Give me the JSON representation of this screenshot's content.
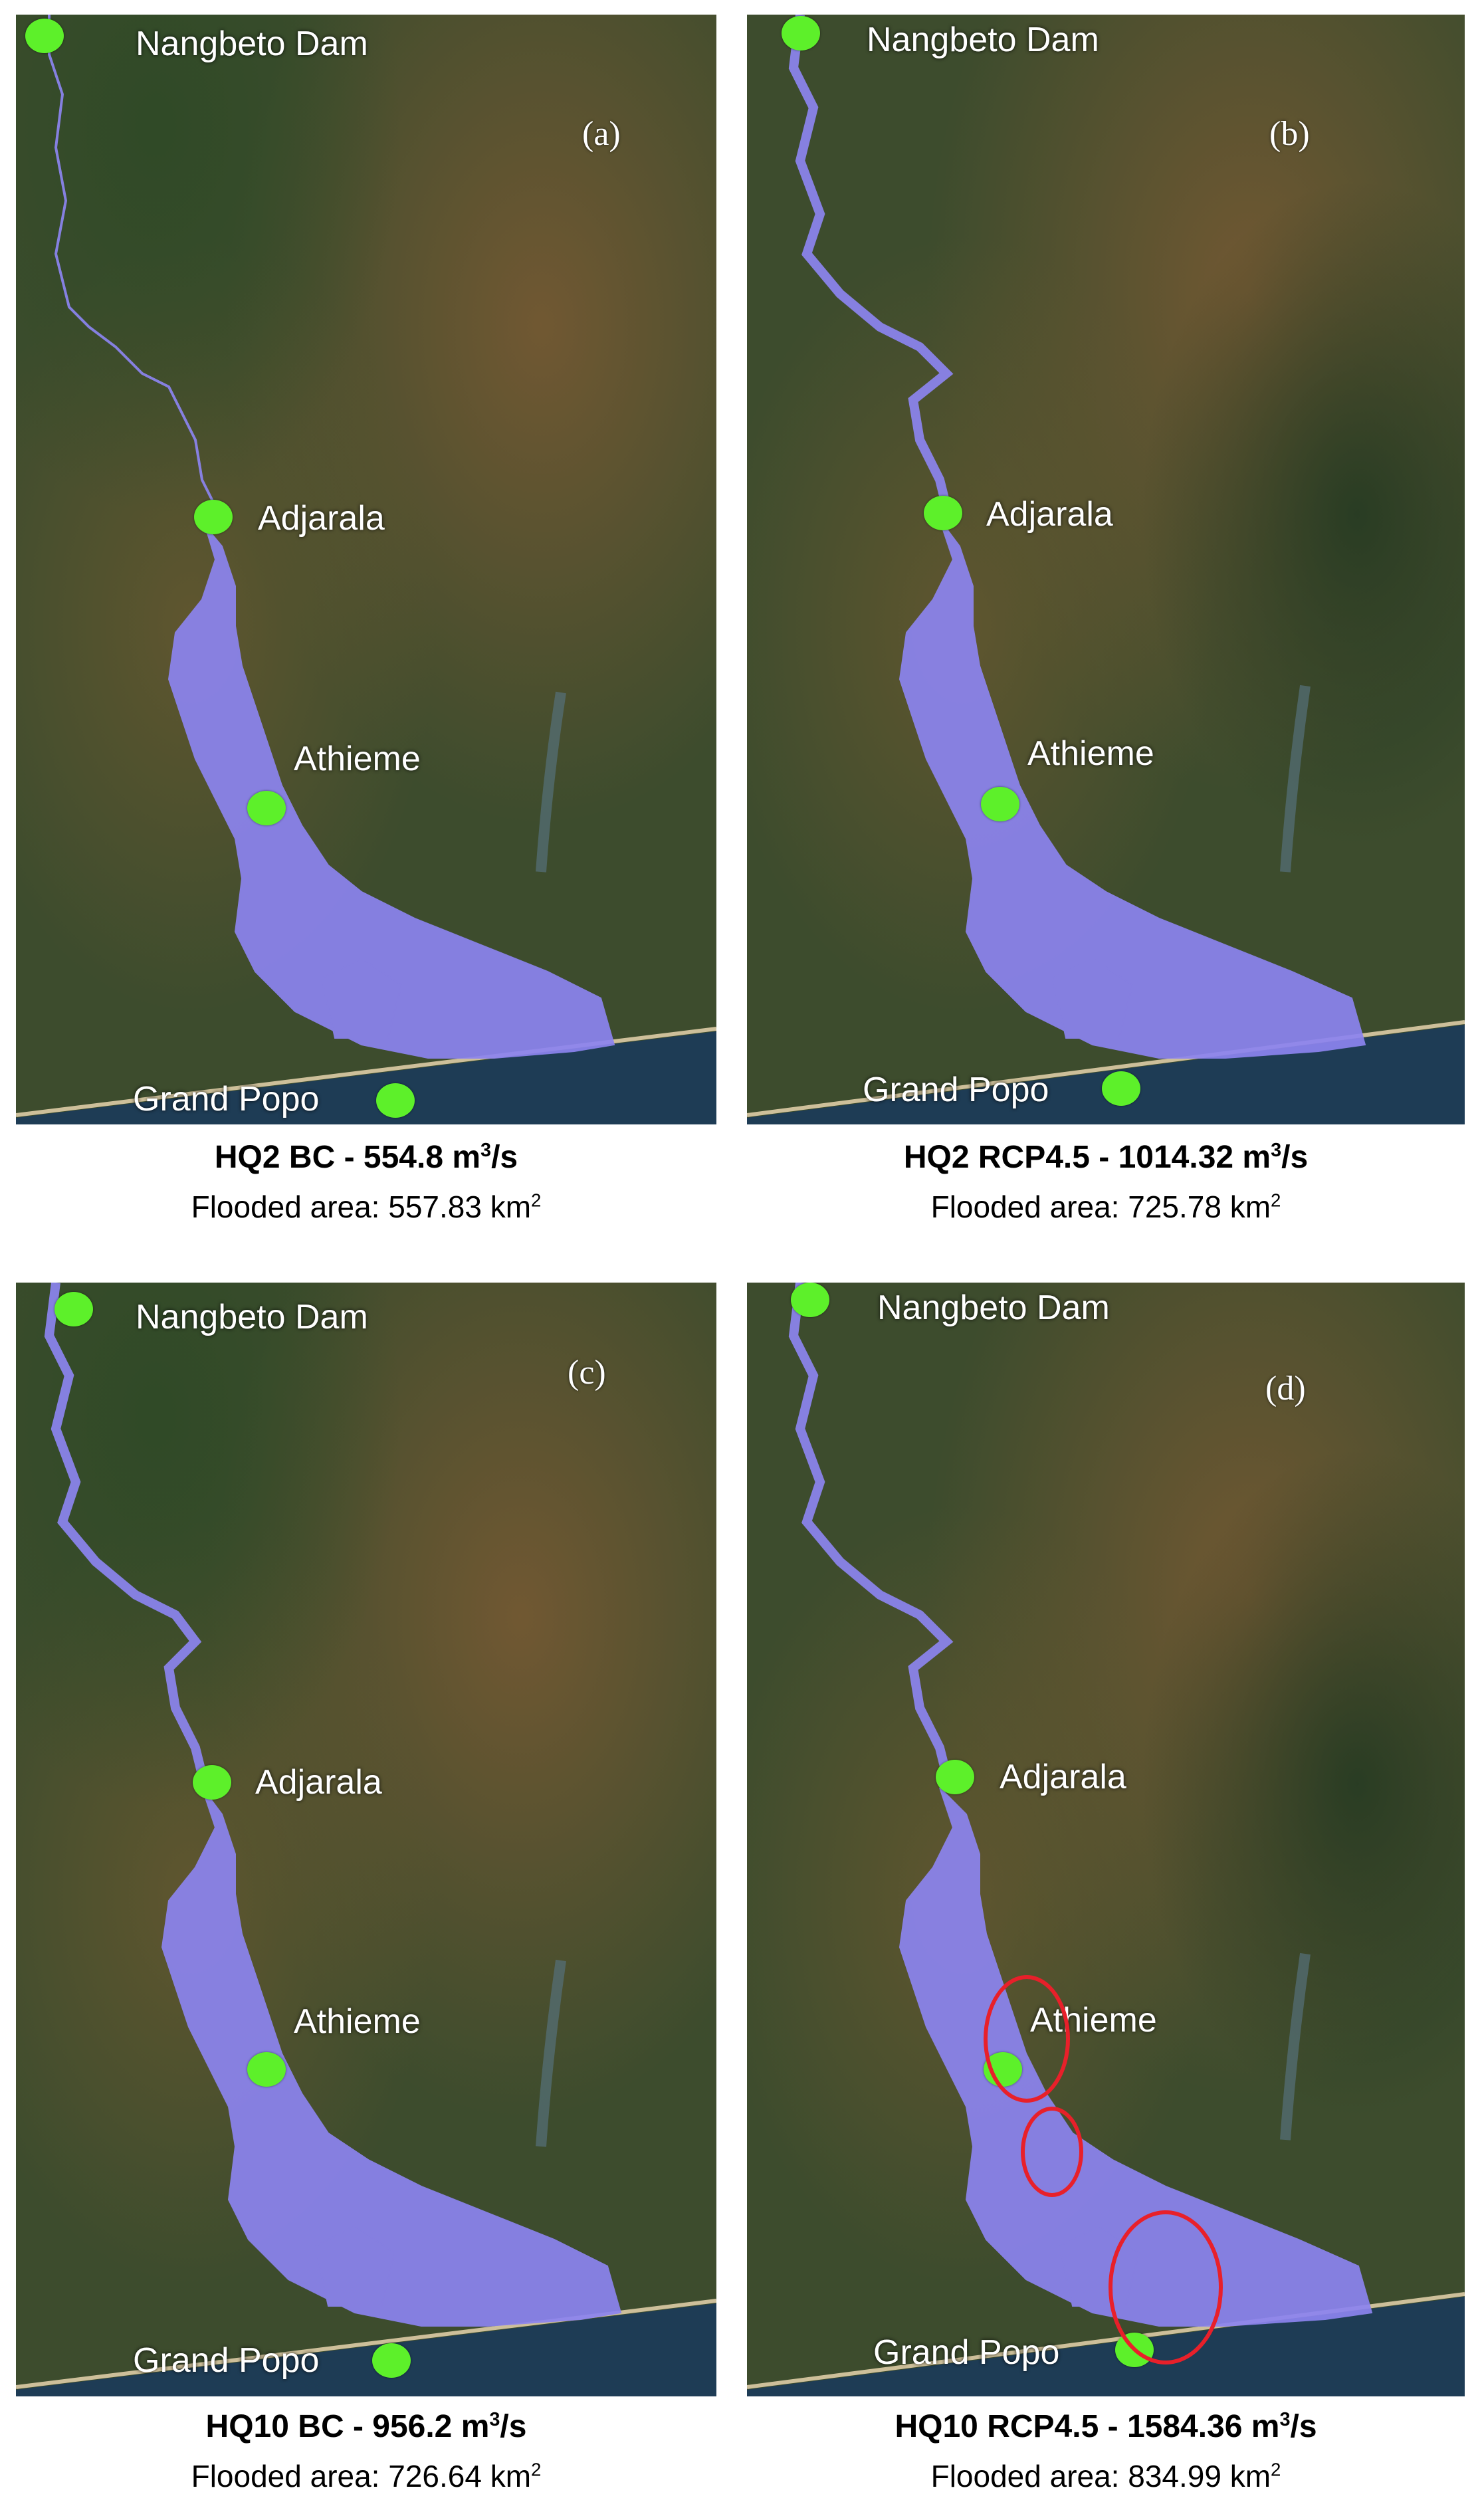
{
  "panels": [
    {
      "label": "(a)",
      "places": {
        "dam": "Nangbeto Dam",
        "adjarala": "Adjarala",
        "athieme": "Athieme",
        "grandpopo": "Grand Popo"
      },
      "caption": {
        "prefix": "HQ2 BC - 554.8 m",
        "exp": "3",
        "suffix": "/s",
        "area_prefix": "Flooded area: 557.83 km",
        "area_exp": "2"
      },
      "flood_extent": "narrow-upstream",
      "highlight_ellipses": 0
    },
    {
      "label": "(b)",
      "places": {
        "dam": "Nangbeto Dam",
        "adjarala": "Adjarala",
        "athieme": "Athieme",
        "grandpopo": "Grand Popo"
      },
      "caption": {
        "prefix": "HQ2 RCP4.5 - 1014.32 m",
        "exp": "3",
        "suffix": "/s",
        "area_prefix": "Flooded area: 725.78 km",
        "area_exp": "2"
      },
      "flood_extent": "wide-upstream",
      "highlight_ellipses": 0
    },
    {
      "label": "(c)",
      "places": {
        "dam": "Nangbeto Dam",
        "adjarala": "Adjarala",
        "athieme": "Athieme",
        "grandpopo": "Grand Popo"
      },
      "caption": {
        "prefix": "HQ10 BC - 956.2 m",
        "exp": "3",
        "suffix": "/s",
        "area_prefix": "Flooded area: 726.64 km",
        "area_exp": "2"
      },
      "flood_extent": "wide-upstream",
      "highlight_ellipses": 0
    },
    {
      "label": "(d)",
      "places": {
        "dam": "Nangbeto Dam",
        "adjarala": "Adjarala",
        "athieme": "Athieme",
        "grandpopo": "Grand Popo"
      },
      "caption": {
        "prefix": "HQ10 RCP4.5 - 1584.36 m",
        "exp": "3",
        "suffix": "/s",
        "area_prefix": "Flooded area: 834.99 km",
        "area_exp": "2"
      },
      "flood_extent": "wide-upstream",
      "highlight_ellipses": 3
    }
  ],
  "colors": {
    "flood": "#8c84f0",
    "marker": "#5df02a",
    "highlight": "#e8202a",
    "land": "#3a4a2c",
    "sea": "#1e3c55"
  }
}
